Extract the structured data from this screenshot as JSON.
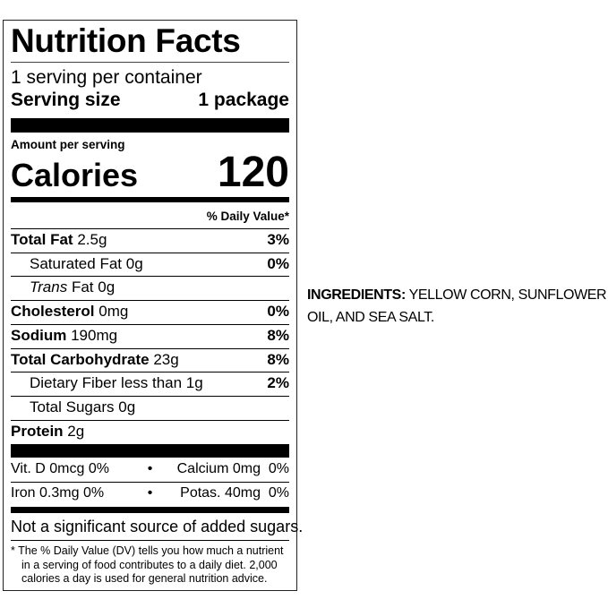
{
  "label": {
    "title": "Nutrition Facts",
    "servings_per_container": "1 serving per container",
    "serving_size_label": "Serving size",
    "serving_size_value": "1 package",
    "amount_per_serving": "Amount per serving",
    "calories_label": "Calories",
    "calories_value": "120",
    "daily_value_header": "% Daily Value*",
    "nutrients": [
      {
        "name": "Total Fat",
        "amount": "2.5g",
        "dv": "3%"
      },
      {
        "name": "Saturated Fat",
        "amount": "0g",
        "dv": "0%"
      },
      {
        "name": "Trans",
        "name_suffix": "Fat",
        "amount": "0g",
        "dv": ""
      },
      {
        "name": "Cholesterol",
        "amount": "0mg",
        "dv": "0%"
      },
      {
        "name": "Sodium",
        "amount": "190mg",
        "dv": "8%"
      },
      {
        "name": "Total Carbohydrate",
        "amount": "23g",
        "dv": "8%"
      },
      {
        "name": "Dietary Fiber",
        "amount": "less than 1g",
        "dv": "2%"
      },
      {
        "name": "Total Sugars",
        "amount": "0g",
        "dv": ""
      },
      {
        "name": "Protein",
        "amount": "2g",
        "dv": ""
      }
    ],
    "vitamins": [
      {
        "left": "Vit. D 0mcg",
        "left_dv": "0%",
        "right": "Calcium 0mg",
        "right_dv": "0%"
      },
      {
        "left": "Iron 0.3mg",
        "left_dv": "0%",
        "right": "Potas. 40mg",
        "right_dv": "0%"
      }
    ],
    "bullet": "•",
    "added_sugars_note": "Not a significant source of added sugars.",
    "footnote": "* The % Daily Value (DV) tells you how much a nutrient in a serving of food contributes to a daily diet. 2,000 calories a day is used for general nutrition advice."
  },
  "ingredients": {
    "heading": "INGREDIENTS:",
    "text": "YELLOW CORN, SUNFLOWER OIL, AND SEA SALT."
  }
}
